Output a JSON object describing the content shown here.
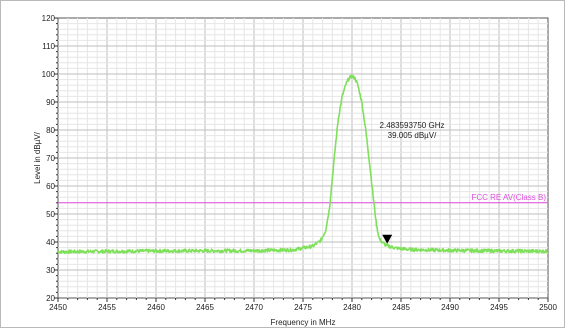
{
  "chart_data": {
    "type": "line",
    "xlabel": "Frequency in MHz",
    "ylabel": "Level in dBµV/",
    "xlim": [
      2450,
      2500
    ],
    "ylim": [
      20,
      120
    ],
    "x_ticks": [
      "2450",
      "2455",
      "2460",
      "2465",
      "2470",
      "2475",
      "2480",
      "2485",
      "2490",
      "2495",
      "2500"
    ],
    "y_ticks": [
      "20",
      "30",
      "40",
      "50",
      "60",
      "70",
      "80",
      "90",
      "100",
      "110",
      "120"
    ],
    "grid": true,
    "series": [
      {
        "color": "#7fe05a",
        "x": [
          2450,
          2460,
          2470,
          2474,
          2476,
          2476.8,
          2477.3,
          2477.7,
          2478.0,
          2478.3,
          2478.6,
          2479.0,
          2479.4,
          2479.7,
          2480.0,
          2480.3,
          2480.6,
          2481.0,
          2481.4,
          2481.8,
          2482.2,
          2482.5,
          2482.8,
          2483.2,
          2483.6,
          2484.5,
          2486,
          2490,
          2495,
          2500
        ],
        "y": [
          36.5,
          36.8,
          36.9,
          37.2,
          38.5,
          40.5,
          44,
          52,
          63,
          74,
          84,
          92,
          96.5,
          98.5,
          99.2,
          98.5,
          96,
          90,
          80,
          68,
          55,
          46,
          41,
          39.5,
          38.6,
          37.8,
          37.3,
          37.0,
          36.8,
          36.7
        ]
      }
    ],
    "limit_line": {
      "label": "FCC RE AV(Class B)",
      "value": 54,
      "color": "#e04de0"
    },
    "marker": {
      "x": 2483.59375,
      "y": 39.005,
      "line1": "2.483593750 GHz",
      "line2": "39.005 dBµV/"
    }
  }
}
